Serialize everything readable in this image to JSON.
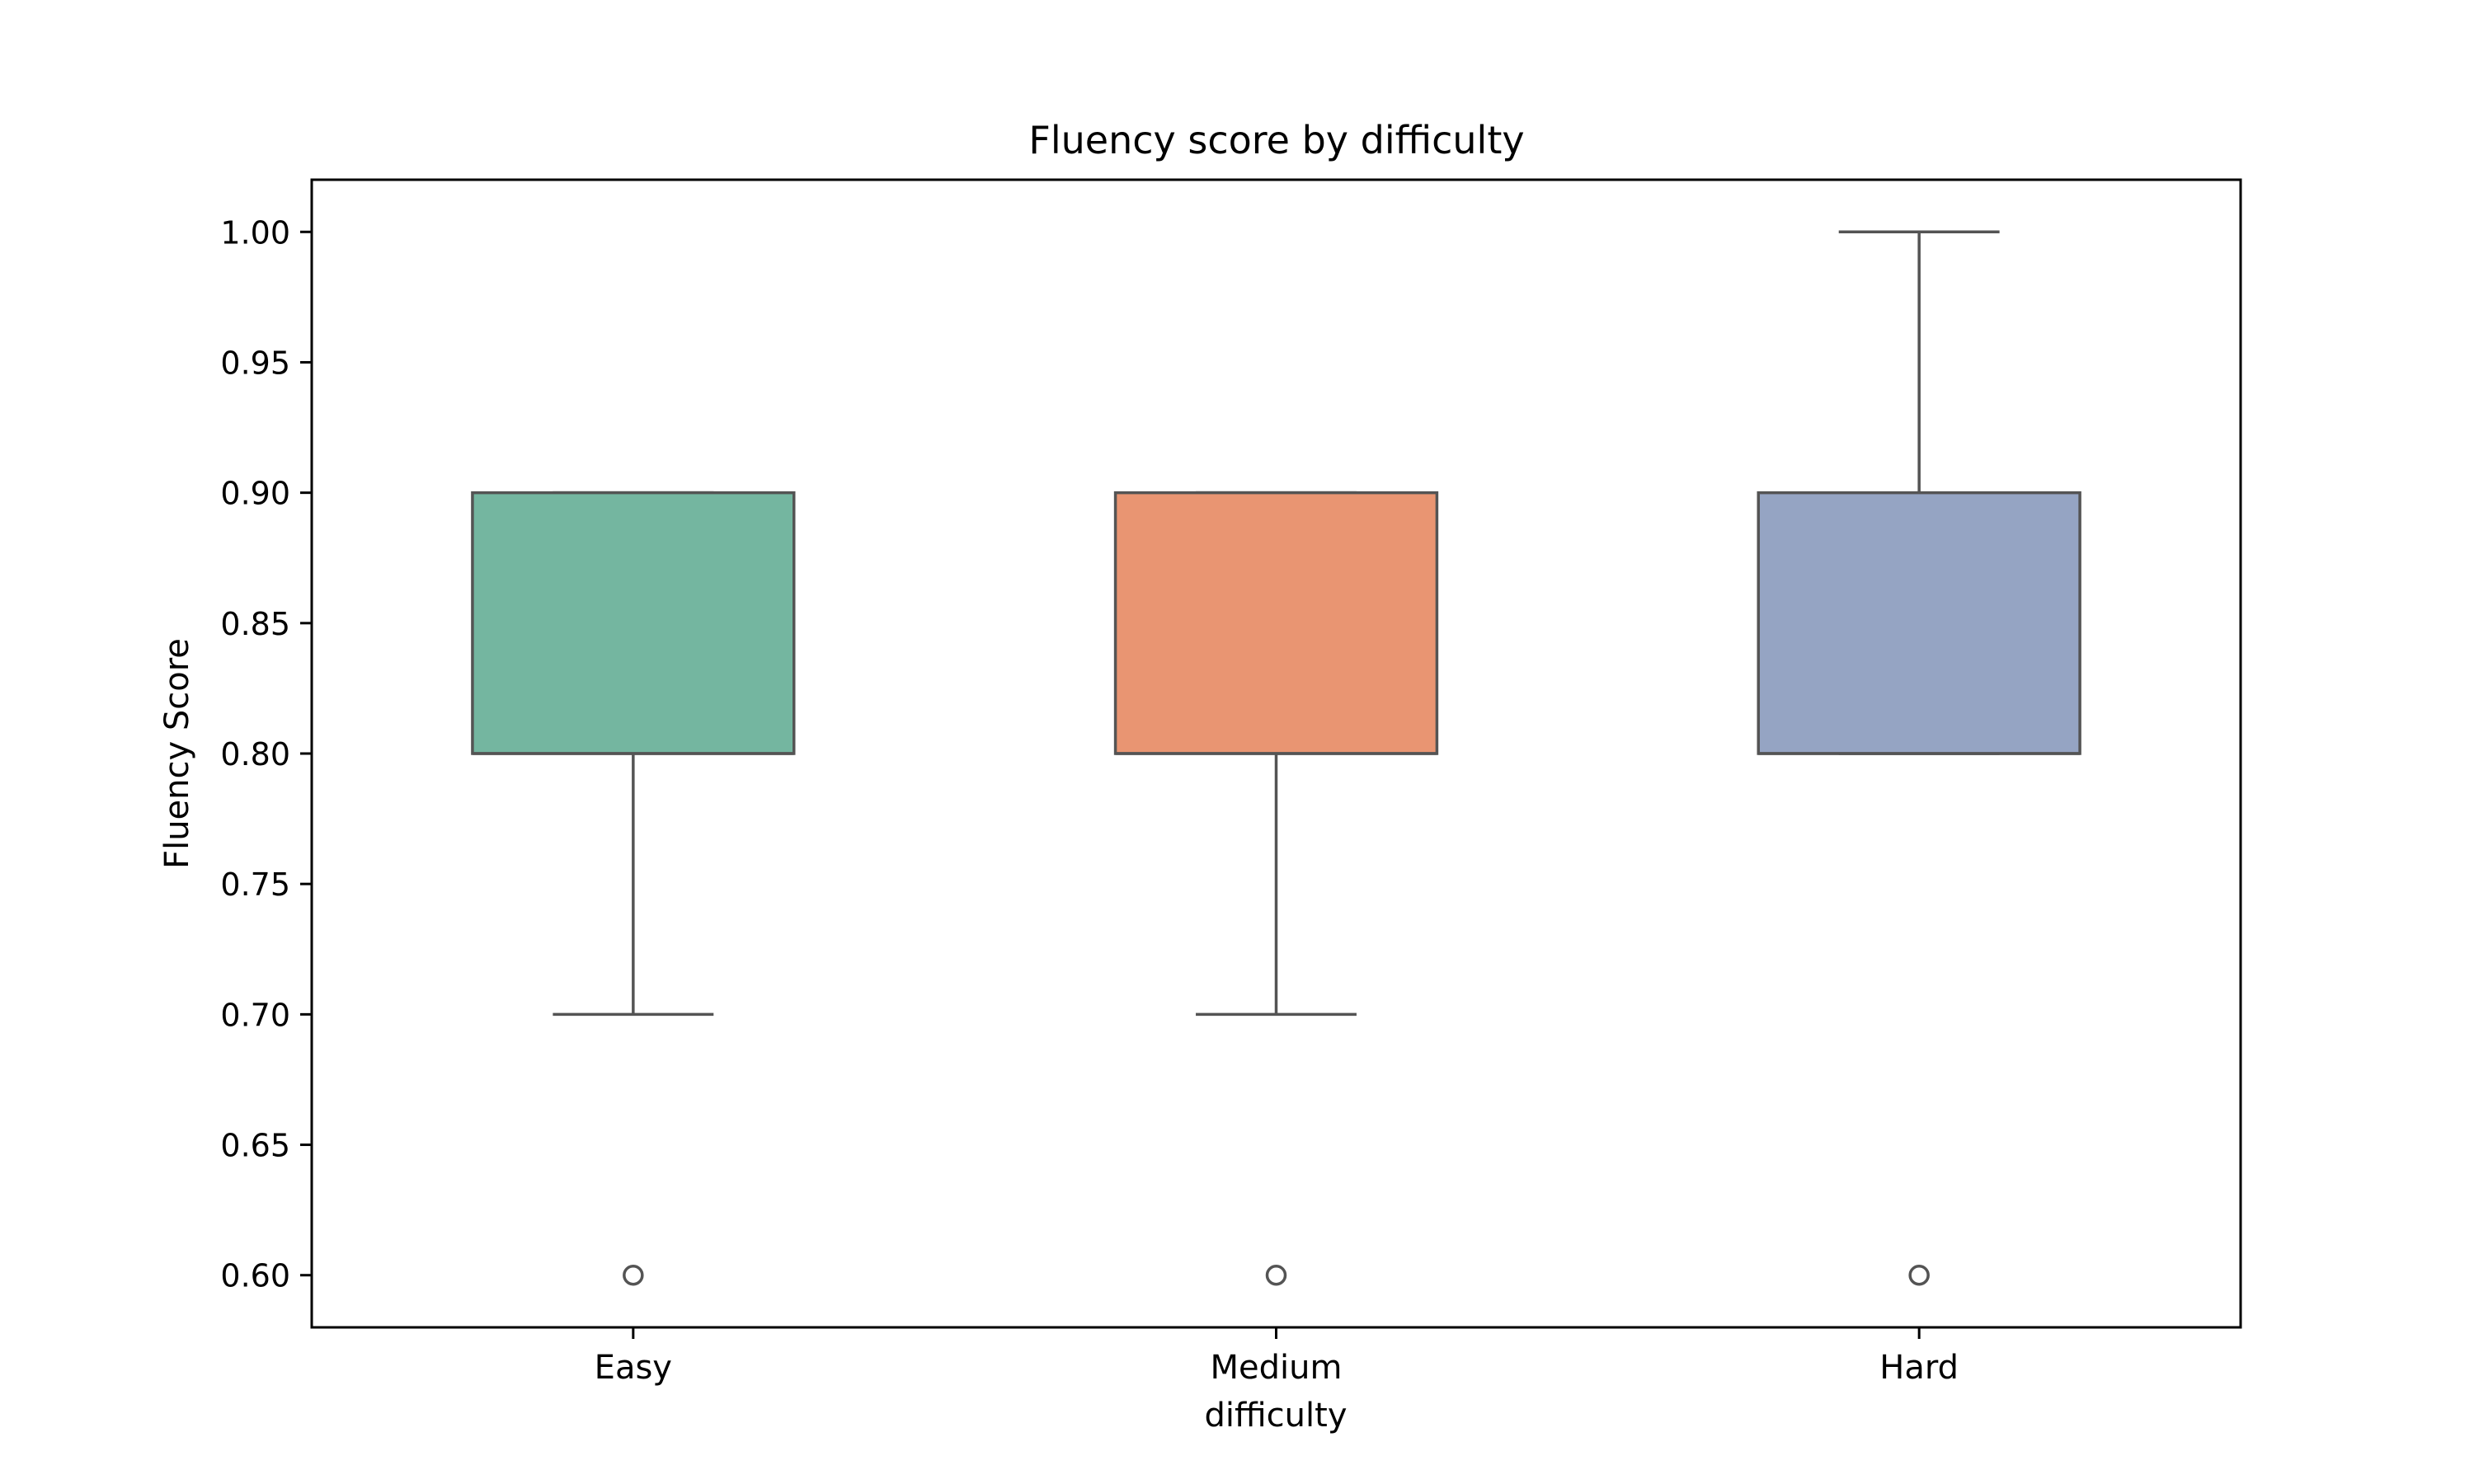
{
  "chart_data": {
    "type": "box",
    "title": "Fluency score by difficulty",
    "xlabel": "difficulty",
    "ylabel": "Fluency Score",
    "ylim": [
      0.58,
      1.02
    ],
    "yticks": [
      0.6,
      0.65,
      0.7,
      0.75,
      0.8,
      0.85,
      0.9,
      0.95,
      1.0
    ],
    "ytick_labels": [
      "0.60",
      "0.65",
      "0.70",
      "0.75",
      "0.80",
      "0.85",
      "0.90",
      "0.95",
      "1.00"
    ],
    "grid": false,
    "legend": "none",
    "categories": [
      "Easy",
      "Medium",
      "Hard"
    ],
    "boxes": [
      {
        "category": "Easy",
        "whisker_low": 0.7,
        "q1": 0.8,
        "median": 0.8,
        "q3": 0.9,
        "whisker_high": 0.9,
        "outliers": [
          0.6
        ],
        "color": "#74b6a0"
      },
      {
        "category": "Medium",
        "whisker_low": 0.7,
        "q1": 0.8,
        "median": 0.8,
        "q3": 0.9,
        "whisker_high": 0.9,
        "outliers": [
          0.6
        ],
        "color": "#e99572"
      },
      {
        "category": "Hard",
        "whisker_low": 0.8,
        "q1": 0.8,
        "median": 0.8,
        "q3": 0.9,
        "whisker_high": 1.0,
        "outliers": [
          0.6
        ],
        "color": "#95a4c3"
      }
    ],
    "line_color": "#545454"
  }
}
